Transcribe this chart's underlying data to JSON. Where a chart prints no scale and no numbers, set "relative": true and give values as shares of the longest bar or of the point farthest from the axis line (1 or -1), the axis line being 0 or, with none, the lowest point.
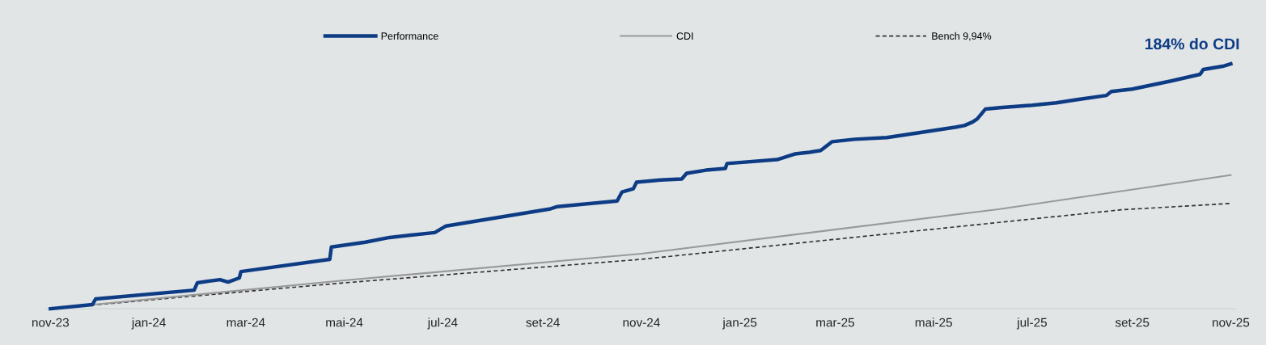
{
  "chart_data": {
    "type": "line",
    "relative": true,
    "legend": "top",
    "grid": false,
    "xticks": [
      {
        "value": "2023-11-01",
        "label": "nov-23"
      },
      {
        "value": "2024-01-01",
        "label": "jan-24"
      },
      {
        "value": "2024-03-01",
        "label": "mar-24"
      },
      {
        "value": "2024-05-01",
        "label": "mai-24"
      },
      {
        "value": "2024-07-01",
        "label": "jul-24"
      },
      {
        "value": "2024-09-01",
        "label": "set-24"
      },
      {
        "value": "2024-11-01",
        "label": "nov-24"
      },
      {
        "value": "2025-01-01",
        "label": "jan-25"
      },
      {
        "value": "2025-03-01",
        "label": "mar-25"
      },
      {
        "value": "2025-05-01",
        "label": "mai-25"
      },
      {
        "value": "2025-07-01",
        "label": "jul-25"
      },
      {
        "value": "2025-09-01",
        "label": "set-25"
      },
      {
        "value": "2025-11-01",
        "label": "nov-25"
      }
    ],
    "xlim": [
      "2023-10-29",
      "2025-11-04"
    ],
    "annotations": [
      {
        "text": "184% do CDI",
        "x": "2025-11-01",
        "y": 1
      }
    ],
    "series": [
      {
        "name": "Performance",
        "color": "#0d3c85",
        "line_style": "solid",
        "x": [
          "2023-11-01",
          "2023-11-27",
          "2023-11-29",
          "2024-01-29",
          "2024-01-31",
          "2024-02-14",
          "2024-02-19",
          "2024-02-26",
          "2024-02-27",
          "2024-04-22",
          "2024-04-23",
          "2024-05-14",
          "2024-05-29",
          "2024-06-26",
          "2024-07-03",
          "2024-09-05",
          "2024-09-10",
          "2024-10-17",
          "2024-10-20",
          "2024-10-27",
          "2024-10-29",
          "2024-11-13",
          "2024-11-26",
          "2024-11-29",
          "2024-12-11",
          "2024-12-23",
          "2024-12-24",
          "2025-01-24",
          "2025-02-04",
          "2025-02-13",
          "2025-02-20",
          "2025-02-27",
          "2025-03-13",
          "2025-04-02",
          "2025-04-22",
          "2025-05-15",
          "2025-05-20",
          "2025-05-25",
          "2025-05-28",
          "2025-06-02",
          "2025-06-11",
          "2025-07-01",
          "2025-07-16",
          "2025-07-29",
          "2025-08-16",
          "2025-08-19",
          "2025-09-01",
          "2025-09-25",
          "2025-10-13",
          "2025-10-15",
          "2025-10-27",
          "2025-11-01"
        ],
        "values": [
          0,
          0.017,
          0.04,
          0.076,
          0.106,
          0.119,
          0.109,
          0.126,
          0.152,
          0.202,
          0.252,
          0.272,
          0.291,
          0.311,
          0.338,
          0.407,
          0.417,
          0.44,
          0.477,
          0.49,
          0.517,
          0.526,
          0.53,
          0.553,
          0.566,
          0.573,
          0.593,
          0.609,
          0.632,
          0.639,
          0.646,
          0.682,
          0.692,
          0.699,
          0.719,
          0.742,
          0.748,
          0.762,
          0.775,
          0.815,
          0.821,
          0.831,
          0.841,
          0.854,
          0.871,
          0.887,
          0.897,
          0.93,
          0.957,
          0.977,
          0.99,
          1
        ]
      },
      {
        "name": "CDI",
        "color": "#999999",
        "line_style": "solid",
        "x": [
          "2023-11-01",
          "2024-05-01",
          "2024-11-01",
          "2025-06-11",
          "2025-11-01"
        ],
        "values": [
          0,
          0.116,
          0.225,
          0.407,
          0.546
        ]
      },
      {
        "name": "Bench 9,94%",
        "color": "#333333",
        "line_style": "dashed",
        "x": [
          "2023-11-01",
          "2024-05-01",
          "2024-11-01",
          "2025-08-25",
          "2025-11-01"
        ],
        "values": [
          0,
          0.106,
          0.202,
          0.404,
          0.43
        ]
      }
    ]
  }
}
